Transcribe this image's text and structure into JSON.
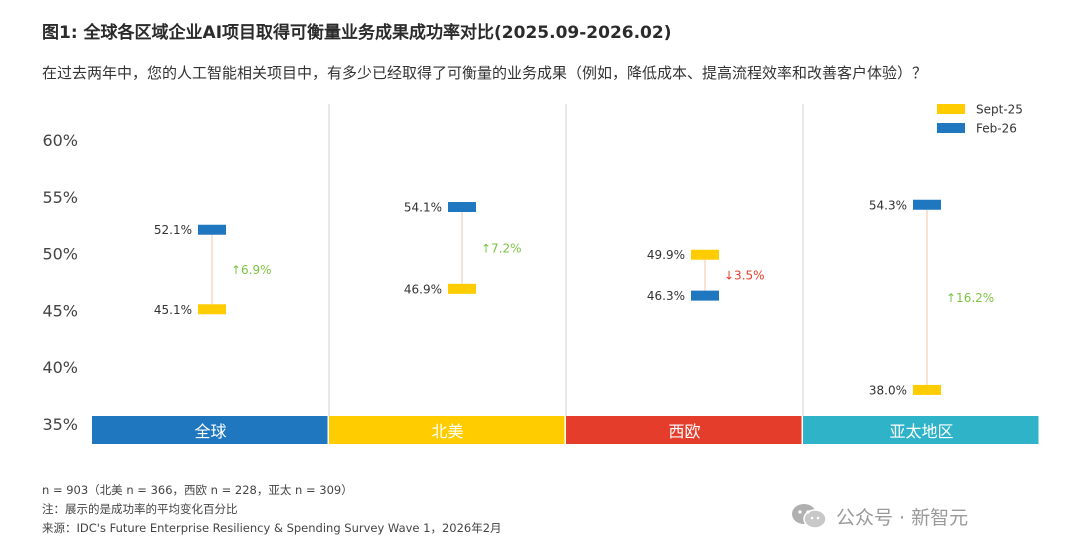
{
  "title": "图1: 全球各区域企业AI项目取得可衡量业务成果成功率对比(2025.09-2026.02)",
  "subtitle": "在过去两年中，您的人工智能相关项目中，有多少已经取得了可衡量的业务成果（例如，降低成本、提高流程效率和改善客户体验）？",
  "chart_data": {
    "type": "range-dot",
    "ylim": [
      35,
      62
    ],
    "yticks": [
      35,
      40,
      45,
      50,
      55,
      60
    ],
    "ytick_labels": [
      "35%",
      "40%",
      "45%",
      "50%",
      "55%",
      "60%"
    ],
    "legend": [
      {
        "name": "Sept-25",
        "color": "#FFCC00"
      },
      {
        "name": "Feb-26",
        "color": "#1F77C0"
      }
    ],
    "legend_position": "top-right",
    "categories": [
      {
        "name": "全球",
        "band_color": "#1F77C0",
        "sept": 45.1,
        "feb": 52.1,
        "sept_label": "45.1%",
        "feb_label": "52.1%",
        "change": "↑6.9%",
        "direction": "up"
      },
      {
        "name": "北美",
        "band_color": "#FFCC00",
        "sept": 46.9,
        "feb": 54.1,
        "sept_label": "46.9%",
        "feb_label": "54.1%",
        "change": "↑7.2%",
        "direction": "up"
      },
      {
        "name": "西欧",
        "band_color": "#E53D2C",
        "sept": 49.9,
        "feb": 46.3,
        "sept_label": "49.9%",
        "feb_label": "46.3%",
        "change": "↓3.5%",
        "direction": "down"
      },
      {
        "name": "亚太地区",
        "band_color": "#2FB3C9",
        "sept": 38.0,
        "feb": 54.3,
        "sept_label": "38.0%",
        "feb_label": "54.3%",
        "change": "↑16.2%",
        "direction": "up"
      }
    ],
    "colors": {
      "up": "#7DC242",
      "down": "#E53D2C",
      "connector": "#F5D9C6",
      "divider": "#D0D0D0"
    }
  },
  "notes": {
    "n": "n = 903（北美 n = 366，西欧 n = 228，亚太 n = 309）",
    "note": "注：展示的是成功率的平均变化百分比",
    "source": "来源：IDC's Future Enterprise Resiliency & Spending Survey Wave 1，2026年2月"
  },
  "watermark": {
    "text": "公众号 · 新智元",
    "icon": "wechat-icon"
  }
}
